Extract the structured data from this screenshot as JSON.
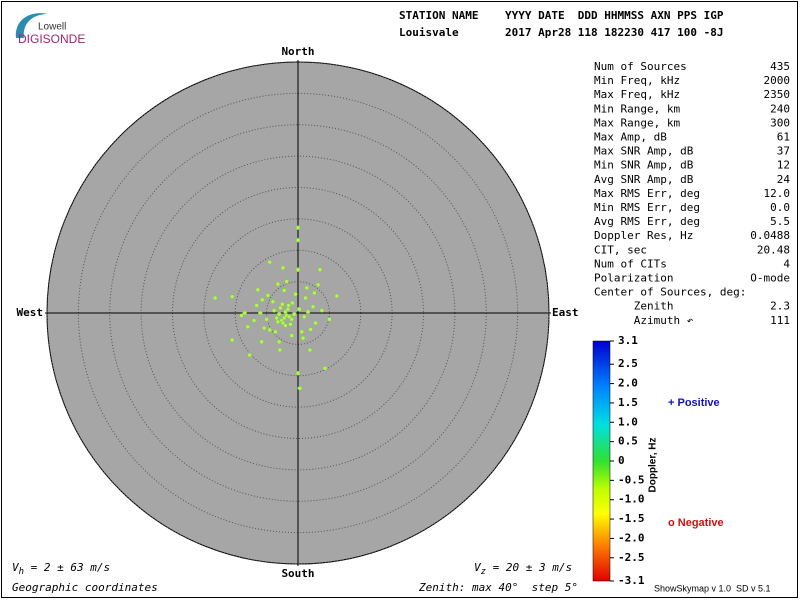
{
  "logo": {
    "top": "Lowell",
    "bottom": "DIGISONDE"
  },
  "header": {
    "line1": "STATION NAME    YYYY DATE  DDD HHMMSS AXN PPS IGP",
    "line2": "Louisvale       2017 Apr28 118 182230 417 100 -8J"
  },
  "stats": [
    {
      "label": "Num of Sources",
      "value": "435"
    },
    {
      "label": "Min Freq, kHz",
      "value": "2000"
    },
    {
      "label": "Max Freq, kHz",
      "value": "2350"
    },
    {
      "label": "Min Range, km",
      "value": "240"
    },
    {
      "label": "Max Range, km",
      "value": "300"
    },
    {
      "label": "Max Amp, dB",
      "value": "61"
    },
    {
      "label": "Max SNR Amp, dB",
      "value": "37"
    },
    {
      "label": "Min SNR Amp, dB",
      "value": "12"
    },
    {
      "label": "Avg SNR Amp, dB",
      "value": "24"
    },
    {
      "label": "Max RMS Err, deg",
      "value": "12.0"
    },
    {
      "label": "Min RMS Err, deg",
      "value": "0.0"
    },
    {
      "label": "Avg RMS Err, deg",
      "value": "5.5"
    },
    {
      "label": "Doppler Res, Hz",
      "value": "0.0488"
    },
    {
      "label": "CIT, sec",
      "value": "20.48"
    },
    {
      "label": "Num of CITs",
      "value": "4"
    },
    {
      "label": "Polarization",
      "value": "O-mode"
    },
    {
      "label": "Center of Sources, deg:",
      "value": ""
    },
    {
      "label": "      Zenith",
      "value": "2.3"
    },
    {
      "label": "      Azimuth ↶",
      "value": "111"
    }
  ],
  "chart_data": {
    "type": "scatter",
    "compass": {
      "north": "North",
      "south": "South",
      "east": "East",
      "west": "West"
    },
    "xlim": [
      -40,
      40
    ],
    "ylim": [
      -40,
      40
    ],
    "rticks": [
      5,
      10,
      15,
      20,
      25,
      30,
      35,
      40
    ],
    "color": "#b8f060",
    "x": [
      0,
      0,
      -4.5,
      -2.4,
      0,
      3.5,
      -13.2,
      -10.5,
      -6.4,
      -5.7,
      6.2,
      3.2,
      -8.5,
      -10.5,
      -7.7,
      0.3,
      4.3,
      1.9,
      -2.9,
      -4.5,
      -2.2,
      -1.8,
      -2.6,
      -1.4,
      -3.0,
      -1.0,
      -2.0,
      -2.4,
      -1.6,
      -3.4,
      -0.6,
      -2.8,
      -1.2,
      -2.0,
      -3.8,
      0.2,
      -1.5,
      -2.5,
      -0.9,
      -3.2,
      1.0,
      1.6,
      2.4,
      -5.0,
      -6.0,
      -4.0,
      2.8,
      3.8,
      -3.6,
      -5.4,
      1.2,
      -0.4,
      -7.0,
      -1.0,
      0.6,
      2.0,
      -4.8,
      -8.0,
      -6.6,
      1.4,
      -2.2,
      -3.0,
      0.8,
      2.6,
      -1.8,
      5.0,
      -9.0,
      -5.8,
      0,
      -3.2
    ],
    "values": [
      11.6,
      13.6,
      8.1,
      7.2,
      6.9,
      6.9,
      2.4,
      2.6,
      3.7,
      2.1,
      2.7,
      4.5,
      0,
      -4.3,
      -6.7,
      -12,
      -8.8,
      -5.9,
      -5.9,
      -2.7,
      -0.8,
      -0.4,
      -1.2,
      -0.6,
      -0.2,
      -1.0,
      0.2,
      -1.6,
      0.6,
      -0.8,
      -0.2,
      0.8,
      -1.8,
      -2.0,
      0.4,
      0.6,
      1.2,
      1.4,
      1.6,
      -1.4,
      -0.6,
      0.2,
      1.0,
      -1.0,
      0.0,
      1.8,
      -1.6,
      0.4,
      -3.0,
      -2.4,
      2.4,
      3.0,
      -1.2,
      -3.6,
      -3.0,
      -2.6,
      2.8,
      -2.2,
      1.2,
      4.0,
      3.6,
      -4.6,
      -4.0,
      3.2,
      5.0,
      -1.0,
      -0.4,
      -4.6,
      -9.6,
      4.6
    ]
  },
  "colorbar": {
    "title": "Doppler, Hz",
    "lim": [
      -3.1,
      3.1
    ],
    "ticks": [
      3.1,
      2.5,
      {
        "value": 2,
        "label": "2.0"
      },
      1.5,
      {
        "value": 1,
        "label": "1.0"
      },
      0.5,
      0,
      -0.5,
      {
        "value": -1,
        "label": "-1.0"
      },
      -1.5,
      {
        "value": -2,
        "label": "-2.0"
      },
      -2.5,
      -3.1
    ],
    "positive": "+ Positive",
    "negative": "o Negative"
  },
  "footer": {
    "vh_v": "V",
    "vh_sub": "h",
    "vh_rest": " = 2 ± 63 m/s",
    "vz_v": "V",
    "vz_sub": "z",
    "vz_rest": " = 20 ± 3 m/s",
    "coords": "Geographic coordinates",
    "zenith": "Zenith: max 40°  step 5°",
    "version": "ShowSkymap v 1.0  SD v 5.1"
  }
}
